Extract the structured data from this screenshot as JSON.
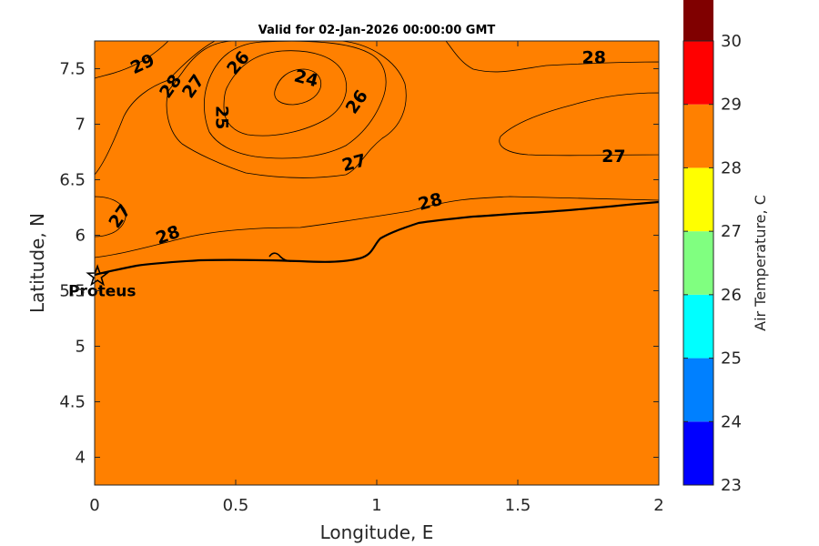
{
  "chart_data": {
    "type": "heatmap",
    "title": "Valid for 02-Jan-2026 00:00:00 GMT",
    "xlabel": "Longitude, E",
    "ylabel": "Latitude, N",
    "xlim": [
      0,
      2
    ],
    "ylim": [
      3.75,
      7.75
    ],
    "x_ticks": [
      0,
      0.5,
      1,
      1.5,
      2
    ],
    "x_tick_labels": [
      "0",
      "0.5",
      "1",
      "1.5",
      "2"
    ],
    "y_ticks": [
      4,
      4.5,
      5,
      5.5,
      6,
      6.5,
      7,
      7.5
    ],
    "y_tick_labels": [
      "4",
      "4.5",
      "5",
      "5.5",
      "6",
      "6.5",
      "7",
      "7.5"
    ],
    "colorbar": {
      "label": "Air Temperature, C",
      "range": [
        23,
        30
      ],
      "ticks": [
        23,
        24,
        25,
        26,
        27,
        28,
        29,
        30
      ],
      "tick_labels": [
        "23",
        "24",
        "25",
        "26",
        "27",
        "28",
        "29",
        "30"
      ],
      "level_colors": [
        "#0000ff",
        "#0080ff",
        "#00ffff",
        "#80ff80",
        "#ffff00",
        "#ff8000",
        "#ff0000",
        "#800000"
      ]
    },
    "contour_labels": [
      {
        "text": "29",
        "lon": 0.17,
        "lat": 7.54,
        "angle": -25
      },
      {
        "text": "28",
        "lon": 0.27,
        "lat": 7.34,
        "angle": -55
      },
      {
        "text": "27",
        "lon": 0.35,
        "lat": 7.34,
        "angle": -55
      },
      {
        "text": "26",
        "lon": 0.51,
        "lat": 7.55,
        "angle": -50
      },
      {
        "text": "24",
        "lon": 0.75,
        "lat": 7.41,
        "angle": 15
      },
      {
        "text": "25",
        "lon": 0.45,
        "lat": 7.06,
        "angle": 90
      },
      {
        "text": "26",
        "lon": 0.93,
        "lat": 7.2,
        "angle": -55
      },
      {
        "text": "27",
        "lon": 0.92,
        "lat": 6.65,
        "angle": -15
      },
      {
        "text": "28",
        "lon": 1.77,
        "lat": 7.6,
        "angle": 0
      },
      {
        "text": "27",
        "lon": 1.84,
        "lat": 6.71,
        "angle": 0
      },
      {
        "text": "28",
        "lon": 1.19,
        "lat": 6.3,
        "angle": -15
      },
      {
        "text": "27",
        "lon": 0.09,
        "lat": 6.17,
        "angle": -55
      },
      {
        "text": "28",
        "lon": 0.26,
        "lat": 6.0,
        "angle": -20
      }
    ],
    "location": {
      "name": "Proteus",
      "lon": 0.01,
      "lat": 5.63
    }
  }
}
